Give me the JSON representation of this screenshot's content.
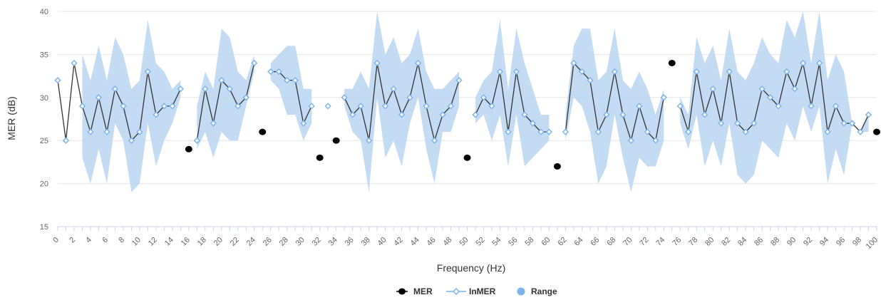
{
  "chart_data": {
    "type": "line",
    "xlabel": "Frequency (Hz)",
    "ylabel": "MER (dB)",
    "xlim": [
      0,
      100
    ],
    "ylim": [
      15,
      40
    ],
    "y_ticks": [
      15,
      20,
      25,
      30,
      35,
      40
    ],
    "x_tick_step": 2,
    "grid": "horizontal",
    "legend_position": "bottom-center",
    "colors": {
      "mer": "#000000",
      "inmer_line": "#333333",
      "inmer_marker": "#7cb5ec",
      "range": "#b8d6f2"
    },
    "legend": [
      "MER",
      "InMER",
      "Range"
    ],
    "series": [
      {
        "name": "MER",
        "points": [
          [
            16,
            24
          ],
          [
            25,
            26
          ],
          [
            32,
            23
          ],
          [
            34,
            25
          ],
          [
            50,
            23
          ],
          [
            61,
            22
          ],
          [
            75,
            34
          ],
          [
            100,
            26
          ]
        ]
      },
      {
        "name": "InMER",
        "values": [
          32,
          25,
          34,
          29,
          26,
          30,
          26,
          31,
          29,
          25,
          26,
          33,
          28,
          29,
          29,
          31,
          null,
          25,
          31,
          27,
          32,
          31,
          29,
          30,
          34,
          null,
          33,
          33,
          32,
          32,
          27,
          29,
          null,
          29,
          null,
          30,
          28,
          29,
          25,
          34,
          29,
          31,
          28,
          30,
          34,
          29,
          25,
          28,
          29,
          32,
          null,
          28,
          30,
          29,
          33,
          26,
          33,
          28,
          27,
          26,
          26,
          null,
          26,
          34,
          33,
          32,
          26,
          28,
          33,
          28,
          25,
          29,
          26,
          25,
          30,
          null,
          29,
          26,
          33,
          28,
          31,
          27,
          33,
          27,
          26,
          27,
          31,
          30,
          29,
          33,
          31,
          34,
          29,
          34,
          26,
          29,
          27,
          27,
          26,
          28,
          null
        ]
      },
      {
        "name": "Range",
        "low": [
          null,
          null,
          null,
          23,
          20,
          24,
          20,
          27,
          25,
          19,
          20,
          27,
          22,
          25,
          27,
          30,
          null,
          24,
          26,
          23,
          26,
          25,
          25,
          29,
          33,
          null,
          32,
          31,
          28,
          28,
          25,
          27,
          null,
          28,
          null,
          29,
          26,
          25,
          19,
          30,
          23,
          25,
          22,
          27,
          30,
          24,
          20,
          26,
          26,
          29,
          null,
          27,
          28,
          25,
          28,
          22,
          28,
          22,
          23,
          24,
          25,
          null,
          25,
          30,
          29,
          26,
          20,
          22,
          28,
          23,
          19,
          23,
          22,
          22,
          25,
          null,
          27,
          24,
          28,
          22,
          25,
          22,
          27,
          21,
          20,
          21,
          25,
          24,
          23,
          27,
          25,
          29,
          26,
          29,
          20,
          24,
          21,
          27,
          26,
          26,
          null
        ],
        "high": [
          null,
          null,
          null,
          35,
          32,
          36,
          32,
          37,
          35,
          31,
          32,
          39,
          34,
          33,
          31,
          32,
          null,
          29,
          33,
          31,
          38,
          37,
          33,
          32,
          35,
          null,
          34,
          35,
          36,
          36,
          31,
          31,
          null,
          29,
          null,
          31,
          31,
          33,
          31,
          40,
          35,
          37,
          34,
          35,
          38,
          33,
          31,
          31,
          32,
          33,
          null,
          30,
          32,
          33,
          39,
          31,
          38,
          34,
          31,
          28,
          28,
          null,
          28,
          36,
          38,
          38,
          32,
          33,
          38,
          32,
          31,
          33,
          31,
          28,
          31,
          null,
          30,
          28,
          37,
          34,
          36,
          32,
          38,
          33,
          32,
          34,
          37,
          35,
          34,
          39,
          37,
          40,
          34,
          40,
          32,
          35,
          33,
          27,
          26,
          28,
          null
        ]
      }
    ]
  }
}
